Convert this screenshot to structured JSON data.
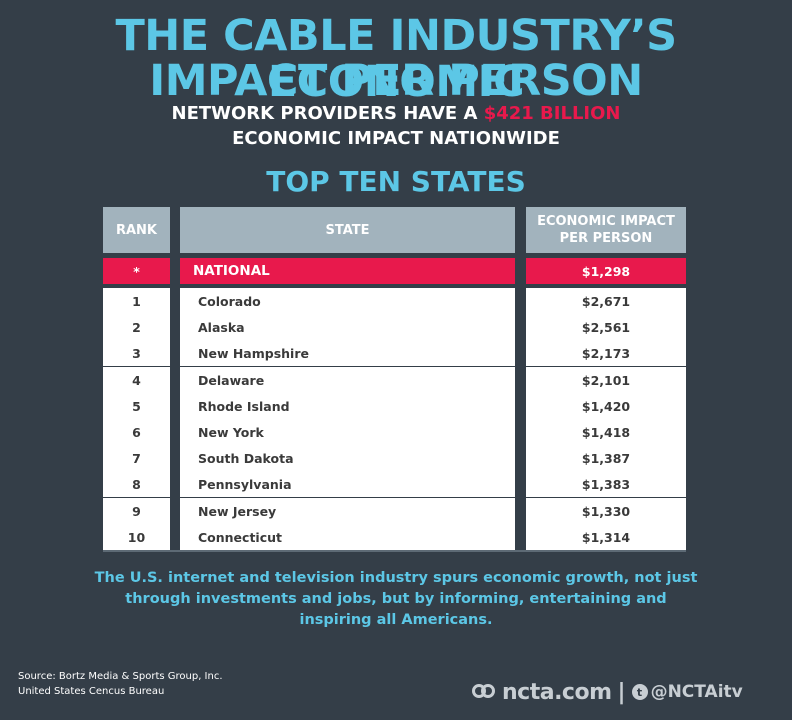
{
  "title_line1": "THE CABLE INDUSTRY’S ECONOMIC",
  "title_line2": "IMPACT PER PERSON",
  "subtitle_line1_pre": "NETWORK PROVIDERS HAVE A ",
  "subtitle_highlight": "$421 BILLION",
  "subtitle_line2": "ECONOMIC IMPACT NATIONWIDE",
  "section_title": "TOP TEN STATES",
  "colors": {
    "accent": "#5cc7e6",
    "highlight": "#e8194c",
    "background": "#343e48",
    "header": "#a2b3bd"
  },
  "chart_data": {
    "type": "table",
    "columns": [
      "RANK",
      "STATE",
      "ECONOMIC IMPACT PER PERSON"
    ],
    "national": {
      "rank": "*",
      "state": "NATIONAL",
      "value": "$1,298"
    },
    "rows": [
      {
        "rank": "1",
        "state": "Colorado",
        "value": "$2,671"
      },
      {
        "rank": "2",
        "state": "Alaska",
        "value": "$2,561"
      },
      {
        "rank": "3",
        "state": "New Hampshire",
        "value": "$2,173"
      },
      {
        "rank": "4",
        "state": "Delaware",
        "value": "$2,101"
      },
      {
        "rank": "5",
        "state": "Rhode Island",
        "value": "$1,420"
      },
      {
        "rank": "6",
        "state": "New York",
        "value": "$1,418"
      },
      {
        "rank": "7",
        "state": "South Dakota",
        "value": "$1,387"
      },
      {
        "rank": "8",
        "state": "Pennsylvania",
        "value": "$1,383"
      },
      {
        "rank": "9",
        "state": "New Jersey",
        "value": "$1,330"
      },
      {
        "rank": "10",
        "state": "Connecticut",
        "value": "$1,314"
      }
    ]
  },
  "footer_text": "The U.S. internet and television industry spurs economic growth, not just through investments and jobs, but by informing, entertaining and inspiring all Americans.",
  "source_line1": "Source: Bortz Media & Sports Group, Inc.",
  "source_line2": "United States Cencus Bureau",
  "brand": {
    "site": "ncta.com",
    "separator": "|",
    "twitter_glyph": "t",
    "handle": "@NCTAitv"
  }
}
